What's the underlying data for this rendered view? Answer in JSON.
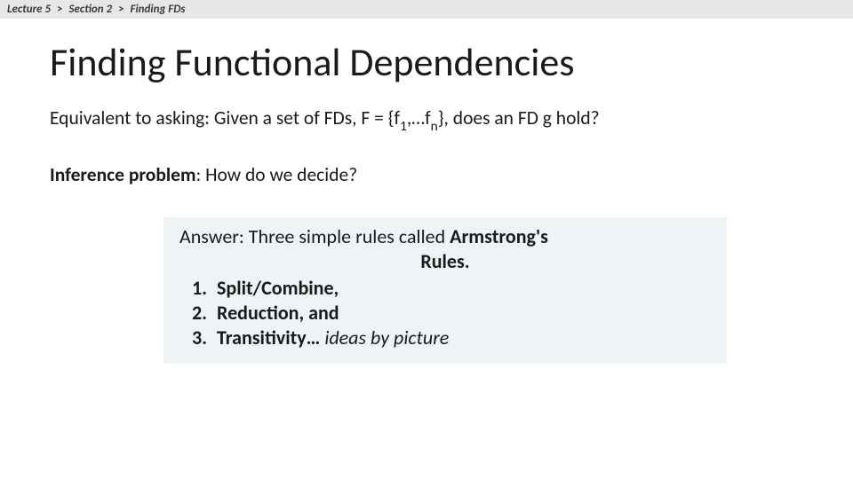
{
  "breadcrumb": {
    "part1": "Lecture 5",
    "part2": "Section 2",
    "part3": "Finding FDs",
    "sep": ">"
  },
  "title": "Finding Functional Dependencies",
  "equiv_line": {
    "pre": "Equivalent to asking: Given a set of FDs, F = {f",
    "sub1": "1",
    "mid": ",…f",
    "sub2": "n",
    "post": "}, does an FD g hold?"
  },
  "inference": {
    "label": "Inference problem",
    "rest": ": How do we decide?"
  },
  "answer": {
    "lead": "Answer: Three simple rules called ",
    "armstrong": "Armstrong's",
    "rules_word": "Rules.",
    "items": {
      "r1": "Split/Combine,",
      "r2": "Reduction, and",
      "r3_bold": "Transitivity… ",
      "r3_ital": "ideas by picture"
    }
  },
  "colors": {
    "breadcrumb_bg": "#e7e7e7",
    "answer_bg": "#eef4f6",
    "text": "#1a1a1a"
  }
}
